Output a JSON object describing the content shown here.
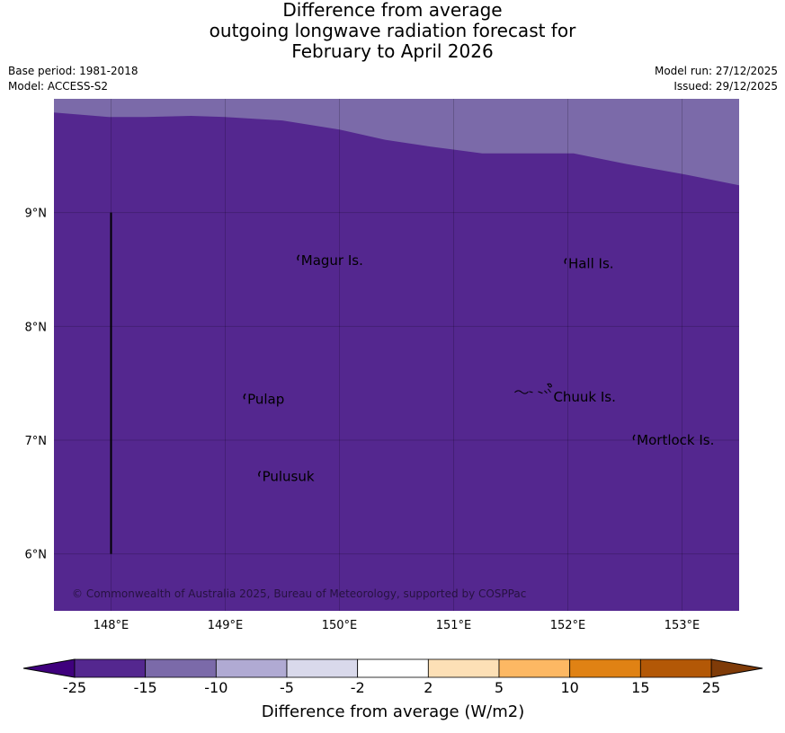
{
  "title_lines": [
    "Difference from average",
    "outgoing longwave radiation forecast for",
    "February to April 2026"
  ],
  "base_period": "Base period: 1981-2018",
  "model": "Model: ACCESS-S2",
  "model_run": "Model run: 27/12/2025",
  "issued": "Issued: 29/12/2025",
  "copyright": "© Commonwealth of Australia 2025, Bureau of Meteorology, supported by COSPPac",
  "map": {
    "lon_range": [
      147.5,
      153.5
    ],
    "lat_range": [
      5.5,
      10.0
    ],
    "lon_ticks": [
      {
        "value": 148,
        "label": "148°E"
      },
      {
        "value": 149,
        "label": "149°E"
      },
      {
        "value": 150,
        "label": "150°E"
      },
      {
        "value": 151,
        "label": "151°E"
      },
      {
        "value": 152,
        "label": "152°E"
      },
      {
        "value": 153,
        "label": "153°E"
      }
    ],
    "lat_ticks": [
      {
        "value": 9,
        "label": "9°N"
      },
      {
        "value": 8,
        "label": "8°N"
      },
      {
        "value": 7,
        "label": "7°N"
      },
      {
        "value": 6,
        "label": "6°N"
      }
    ],
    "main_fill_color": "#54278f",
    "upper_band_color": "#7b6aa9",
    "band_boundary": [
      [
        147.5,
        9.88
      ],
      [
        147.98,
        9.84
      ],
      [
        148.3,
        9.84
      ],
      [
        148.7,
        9.85
      ],
      [
        149.0,
        9.84
      ],
      [
        149.5,
        9.81
      ],
      [
        150.0,
        9.73
      ],
      [
        150.4,
        9.64
      ],
      [
        150.8,
        9.58
      ],
      [
        151.25,
        9.52
      ],
      [
        151.7,
        9.52
      ],
      [
        152.05,
        9.52
      ],
      [
        152.5,
        9.43
      ],
      [
        153.0,
        9.34
      ],
      [
        153.5,
        9.24
      ]
    ],
    "meridian_line": {
      "lon": 148.0,
      "lat_from": 6.0,
      "lat_to": 9.0
    },
    "islands": [
      {
        "name": "Magur Is.",
        "lon": 149.64,
        "lat": 8.58
      },
      {
        "name": "Hall Is.",
        "lon": 151.98,
        "lat": 8.55
      },
      {
        "name": "Pulap",
        "lon": 149.17,
        "lat": 7.36
      },
      {
        "name": "Chuuk Is.",
        "lon": 151.85,
        "lat": 7.38
      },
      {
        "name": "Mortlock Is.",
        "lon": 152.58,
        "lat": 7.0
      },
      {
        "name": "Pulusuk",
        "lon": 149.3,
        "lat": 6.68
      }
    ]
  },
  "colorbar": {
    "label": "Difference from average (W/m2)",
    "tick_labels": [
      "-25",
      "-15",
      "-10",
      "-5",
      "-2",
      "2",
      "5",
      "10",
      "15",
      "25"
    ],
    "under_color": "#3f007d",
    "over_color": "#7f3b08",
    "colors": [
      "#54278f",
      "#7b6aa9",
      "#b0aad3",
      "#d9d9eb",
      "#ffffff",
      "#fde0b6",
      "#fdb863",
      "#e08214",
      "#b35806"
    ]
  }
}
